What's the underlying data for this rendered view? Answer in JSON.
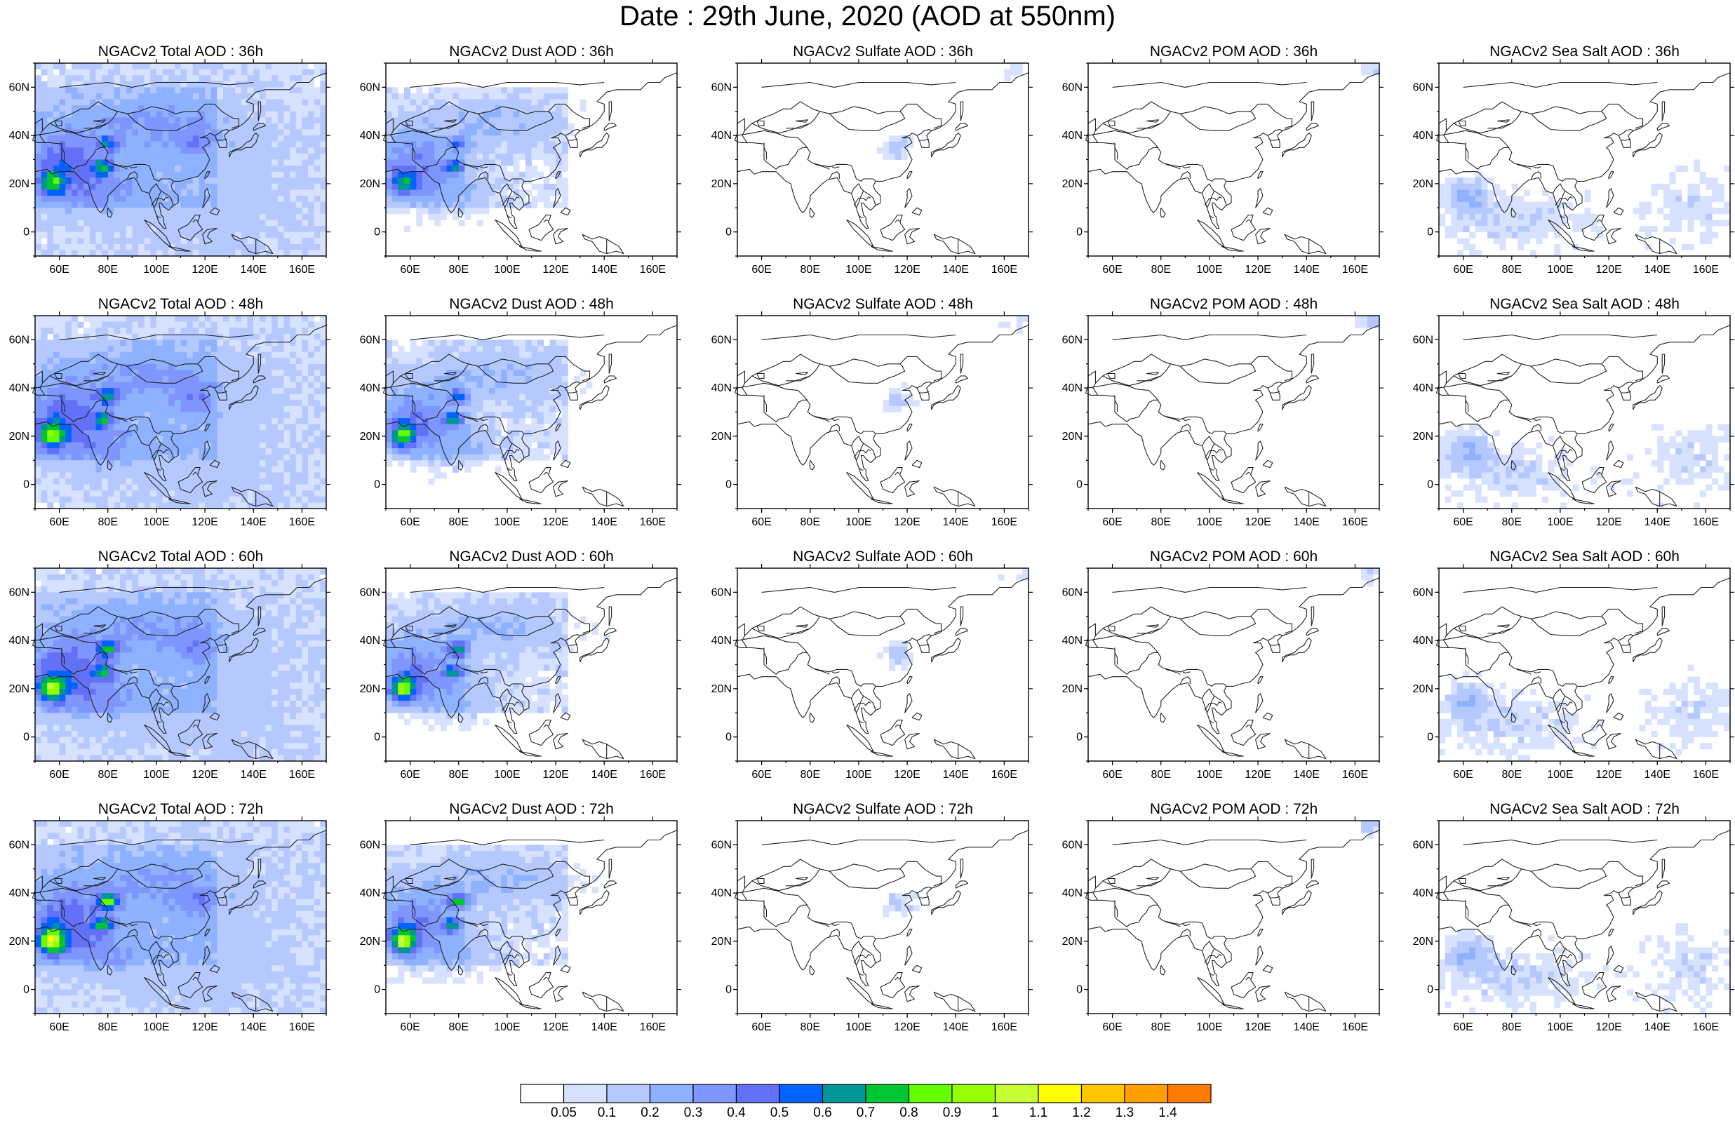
{
  "figure": {
    "title": "Date : 29th June, 2020 (AOD at 550nm)"
  },
  "map_axes": {
    "lon_ticks": [
      "60E",
      "80E",
      "100E",
      "120E",
      "140E",
      "160E"
    ],
    "lat_ticks": [
      "60N",
      "40N",
      "20N",
      "0"
    ],
    "lon_values": [
      60,
      80,
      100,
      120,
      140,
      160
    ],
    "lat_values": [
      60,
      40,
      20,
      0
    ],
    "lon_range": [
      50,
      170
    ],
    "lat_range": [
      -10,
      70
    ]
  },
  "panels": [
    {
      "title": "NGACv2 Total AOD : 36h",
      "species": "total",
      "hour": 36
    },
    {
      "title": "NGACv2 Dust AOD : 36h",
      "species": "dust",
      "hour": 36
    },
    {
      "title": "NGACv2 Sulfate AOD : 36h",
      "species": "sulfate",
      "hour": 36
    },
    {
      "title": "NGACv2 POM AOD : 36h",
      "species": "pom",
      "hour": 36
    },
    {
      "title": "NGACv2 Sea Salt AOD : 36h",
      "species": "seasalt",
      "hour": 36
    },
    {
      "title": "NGACv2 Total AOD : 48h",
      "species": "total",
      "hour": 48
    },
    {
      "title": "NGACv2 Dust AOD : 48h",
      "species": "dust",
      "hour": 48
    },
    {
      "title": "NGACv2 Sulfate AOD : 48h",
      "species": "sulfate",
      "hour": 48
    },
    {
      "title": "NGACv2 POM AOD : 48h",
      "species": "pom",
      "hour": 48
    },
    {
      "title": "NGACv2 Sea Salt AOD : 48h",
      "species": "seasalt",
      "hour": 48
    },
    {
      "title": "NGACv2 Total AOD : 60h",
      "species": "total",
      "hour": 60
    },
    {
      "title": "NGACv2 Dust AOD : 60h",
      "species": "dust",
      "hour": 60
    },
    {
      "title": "NGACv2 Sulfate AOD : 60h",
      "species": "sulfate",
      "hour": 60
    },
    {
      "title": "NGACv2 POM AOD : 60h",
      "species": "pom",
      "hour": 60
    },
    {
      "title": "NGACv2 Sea Salt AOD : 60h",
      "species": "seasalt",
      "hour": 60
    },
    {
      "title": "NGACv2 Total AOD : 72h",
      "species": "total",
      "hour": 72
    },
    {
      "title": "NGACv2 Dust AOD : 72h",
      "species": "dust",
      "hour": 72
    },
    {
      "title": "NGACv2 Sulfate AOD : 72h",
      "species": "sulfate",
      "hour": 72
    },
    {
      "title": "NGACv2 POM AOD : 72h",
      "species": "pom",
      "hour": 72
    },
    {
      "title": "NGACv2 Sea Salt  AOD : 72h",
      "species": "seasalt",
      "hour": 72
    }
  ],
  "colorbar": {
    "labels": [
      "0.05",
      "0.1",
      "0.2",
      "0.3",
      "0.4",
      "0.5",
      "0.6",
      "0.7",
      "0.8",
      "0.9",
      "1",
      "1.1",
      "1.2",
      "1.3",
      "1.4"
    ],
    "colors": [
      "#ffffff",
      "#d6e2ff",
      "#b5c9ff",
      "#8eb2ff",
      "#7f96ff",
      "#6370f8",
      "#0063ff",
      "#009696",
      "#00c633",
      "#63ff00",
      "#96ff00",
      "#c6ff33",
      "#ffff00",
      "#ffc600",
      "#ffa000",
      "#ff7c00",
      "#ff1900"
    ]
  }
}
